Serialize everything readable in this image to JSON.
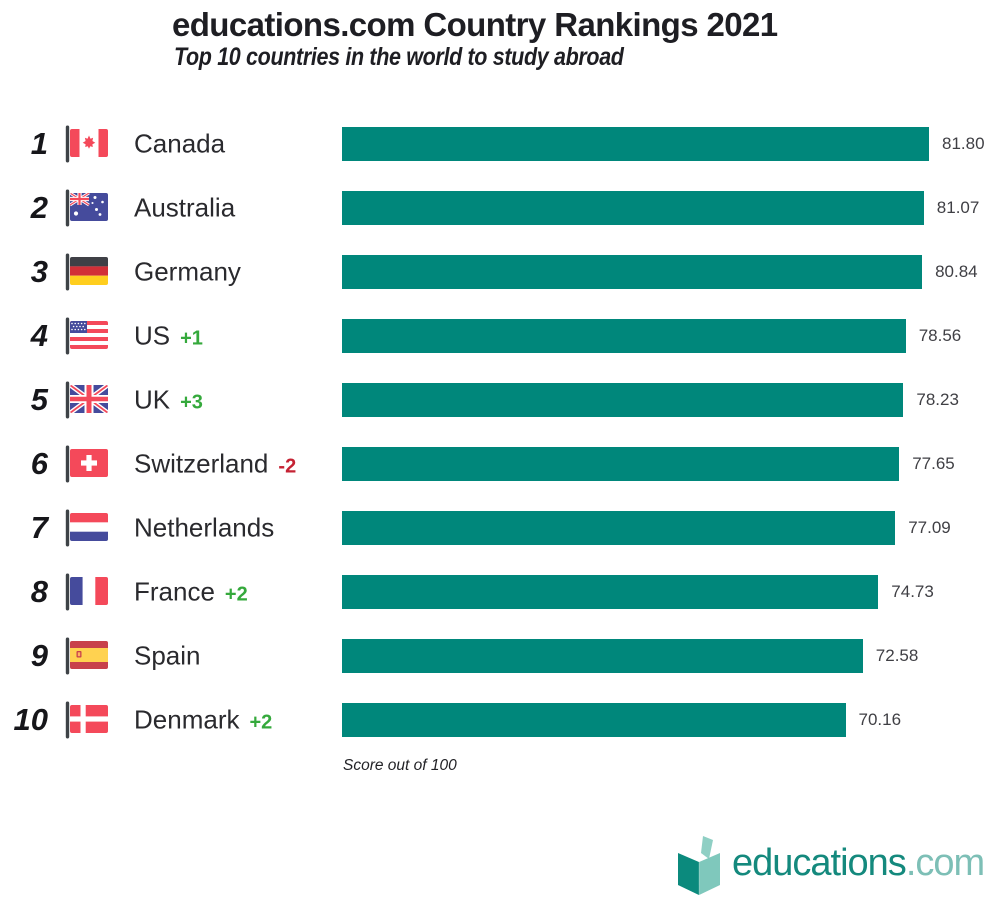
{
  "header": {
    "title": "educations.com Country Rankings 2021",
    "subtitle": "Top 10 countries in the world to study abroad"
  },
  "footnote": "Score out of 100",
  "logo": {
    "brand": "educations",
    "tld": ".com",
    "icon": "open-book-icon"
  },
  "colors": {
    "bar": "#00877B",
    "positive_change": "#35A93C",
    "negative_change": "#C52233",
    "logo_brand": "#14897D",
    "logo_tld": "#7DBFB6",
    "title_text": "#1E1E23",
    "score_text": "#3F3F44"
  },
  "chart_data": {
    "type": "bar",
    "orientation": "horizontal",
    "title": "educations.com Country Rankings 2021",
    "subtitle": "Top 10 countries in the world to study abroad",
    "xlabel": "Score out of 100",
    "xlim": [
      0,
      100
    ],
    "grid": false,
    "legend": false,
    "categories": [
      "Canada",
      "Australia",
      "Germany",
      "US",
      "UK",
      "Switzerland",
      "Netherlands",
      "France",
      "Spain",
      "Denmark"
    ],
    "values": [
      81.8,
      81.07,
      80.84,
      78.56,
      78.23,
      77.65,
      77.09,
      74.73,
      72.58,
      70.16
    ],
    "rows": [
      {
        "rank": "1",
        "country": "Canada",
        "flag": "canada",
        "score": 81.8,
        "score_display": "81.80",
        "change": null,
        "direction": null
      },
      {
        "rank": "2",
        "country": "Australia",
        "flag": "australia",
        "score": 81.07,
        "score_display": "81.07",
        "change": null,
        "direction": null
      },
      {
        "rank": "3",
        "country": "Germany",
        "flag": "germany",
        "score": 80.84,
        "score_display": "80.84",
        "change": null,
        "direction": null
      },
      {
        "rank": "4",
        "country": "US",
        "flag": "us",
        "score": 78.56,
        "score_display": "78.56",
        "change": "+1",
        "direction": "up"
      },
      {
        "rank": "5",
        "country": "UK",
        "flag": "uk",
        "score": 78.23,
        "score_display": "78.23",
        "change": "+3",
        "direction": "up"
      },
      {
        "rank": "6",
        "country": "Switzerland",
        "flag": "switzerland",
        "score": 77.65,
        "score_display": "77.65",
        "change": "-2",
        "direction": "down"
      },
      {
        "rank": "7",
        "country": "Netherlands",
        "flag": "netherlands",
        "score": 77.09,
        "score_display": "77.09",
        "change": null,
        "direction": null
      },
      {
        "rank": "8",
        "country": "France",
        "flag": "france",
        "score": 74.73,
        "score_display": "74.73",
        "change": "+2",
        "direction": "up"
      },
      {
        "rank": "9",
        "country": "Spain",
        "flag": "spain",
        "score": 72.58,
        "score_display": "72.58",
        "change": null,
        "direction": null
      },
      {
        "rank": "10",
        "country": "Denmark",
        "flag": "denmark",
        "score": 70.16,
        "score_display": "70.16",
        "change": "+2",
        "direction": "up"
      }
    ]
  }
}
